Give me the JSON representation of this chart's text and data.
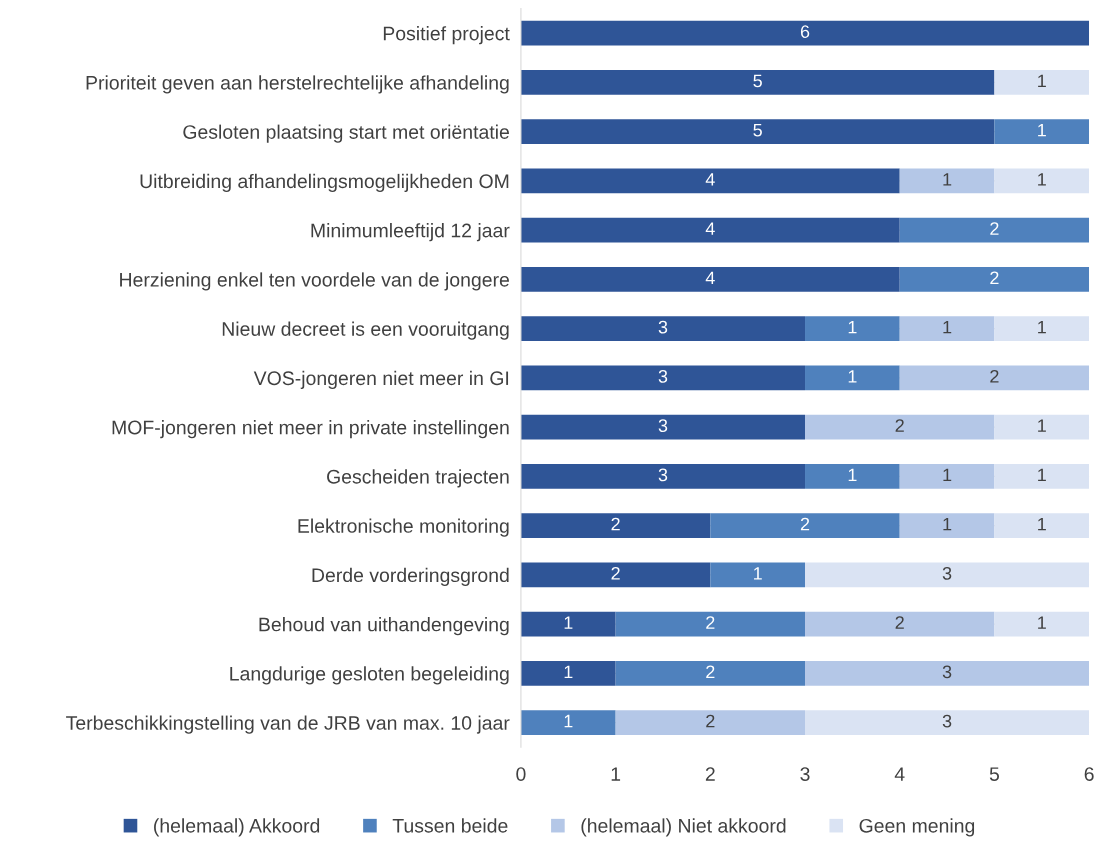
{
  "chart_data": {
    "type": "bar",
    "orientation": "horizontal",
    "stacked": true,
    "data_labels": true,
    "legend": "bottom",
    "grid": false,
    "xlim": [
      0,
      6
    ],
    "xticks": [
      0,
      1,
      2,
      3,
      4,
      5,
      6
    ],
    "categories": [
      "Positief project",
      "Prioriteit geven aan herstelrechtelijke afhandeling",
      "Gesloten plaatsing start met oriëntatie",
      "Uitbreiding afhandelingsmogelijkheden OM",
      "Minimumleeftijd 12 jaar",
      "Herziening enkel ten voordele van de jongere",
      "Nieuw decreet is een vooruitgang",
      "VOS-jongeren niet meer in GI",
      "MOF-jongeren niet meer in private instellingen",
      "Gescheiden trajecten",
      "Elektronische monitoring",
      "Derde vorderingsgrond",
      "Behoud van uithandengeving",
      "Langdurige gesloten begeleiding",
      "Terbeschikkingstelling van de JRB van max. 10 jaar"
    ],
    "series": [
      {
        "name": "(helemaal) Akkoord",
        "color": "#2f5597",
        "values": [
          6,
          5,
          5,
          4,
          4,
          4,
          3,
          3,
          3,
          3,
          2,
          2,
          1,
          1,
          null
        ]
      },
      {
        "name": "Tussen beide",
        "color": "#4f81bd",
        "values": [
          null,
          null,
          1,
          null,
          2,
          2,
          1,
          1,
          null,
          1,
          2,
          1,
          2,
          2,
          1
        ]
      },
      {
        "name": "(helemaal) Niet akkoord",
        "color": "#b4c7e7",
        "values": [
          null,
          null,
          null,
          1,
          null,
          null,
          1,
          2,
          2,
          1,
          1,
          null,
          2,
          3,
          2
        ]
      },
      {
        "name": "Geen mening",
        "color": "#dae3f3",
        "values": [
          null,
          1,
          null,
          1,
          null,
          null,
          1,
          null,
          1,
          1,
          1,
          3,
          1,
          null,
          3
        ]
      }
    ]
  }
}
